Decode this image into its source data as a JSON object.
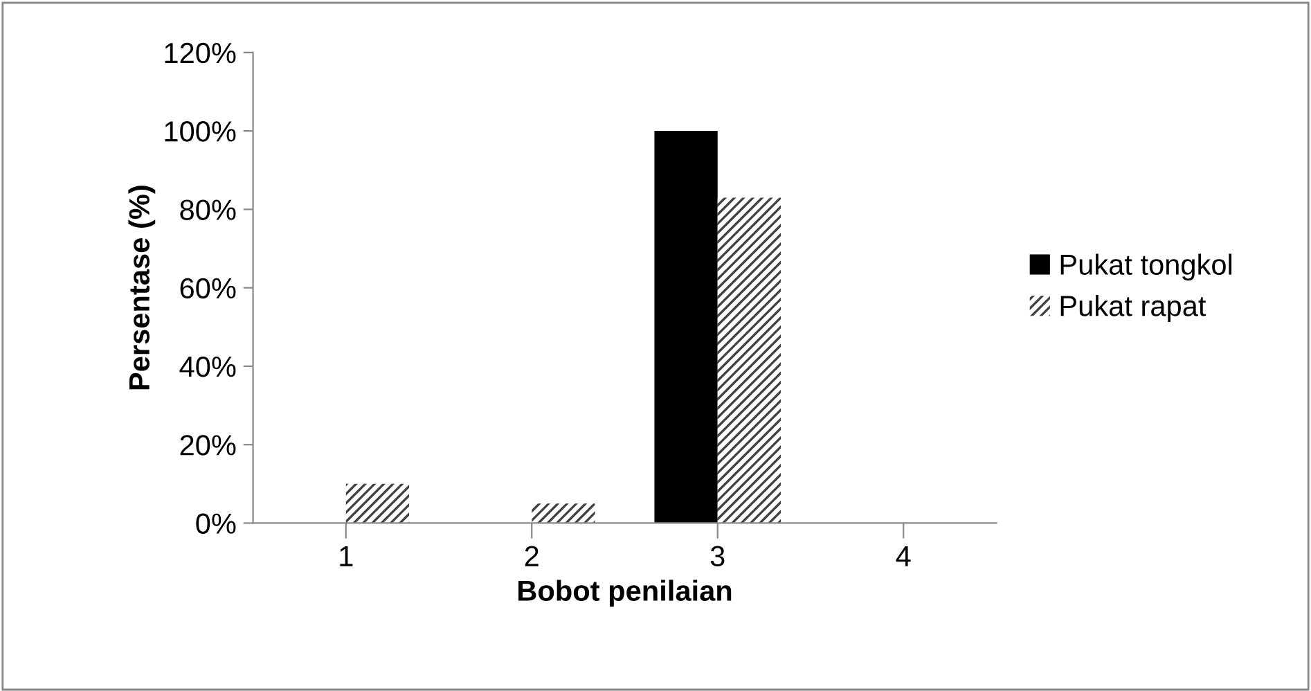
{
  "chart_data": {
    "type": "bar",
    "xlabel": "Bobot penilaian",
    "ylabel": "Persentase (%)",
    "categories": [
      "1",
      "2",
      "3",
      "4"
    ],
    "series": [
      {
        "name": "Pukat tongkol",
        "color": "#000000",
        "values": [
          0,
          0,
          100,
          0
        ]
      },
      {
        "name": "Pukat rapat",
        "color": "#404040",
        "values": [
          10,
          5,
          83,
          0
        ]
      }
    ],
    "ylim": [
      0,
      120
    ],
    "yticks": [
      {
        "value": 0,
        "label": "0%"
      },
      {
        "value": 20,
        "label": "20%"
      },
      {
        "value": 40,
        "label": "40%"
      },
      {
        "value": 60,
        "label": "60%"
      },
      {
        "value": 80,
        "label": "80%"
      },
      {
        "value": 100,
        "label": "100%"
      },
      {
        "value": 120,
        "label": "120%"
      }
    ],
    "grid": false,
    "legend": "right"
  }
}
